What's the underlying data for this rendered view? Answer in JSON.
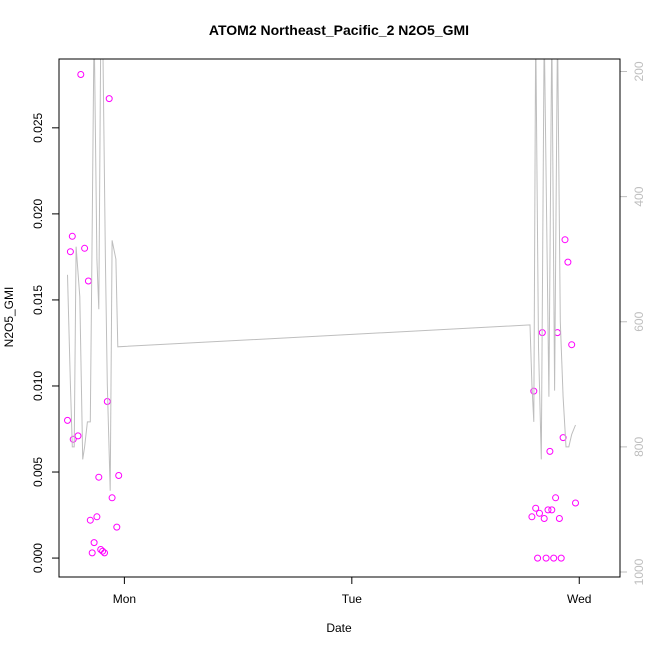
{
  "chart_data": {
    "type": "scatter",
    "title": "ATOM2 Northeast_Pacific_2 N2O5_GMI",
    "xlabel": "Date",
    "ylabel": "N2O5_GMI",
    "x_unit": "hours from Mon 00:00",
    "xlim": [
      -6.9,
      52.3
    ],
    "x_ticks": [
      {
        "value": 0,
        "label": "Mon"
      },
      {
        "value": 24,
        "label": "Tue"
      },
      {
        "value": 48,
        "label": "Wed"
      }
    ],
    "ylim": [
      -0.0011,
      0.029
    ],
    "y_ticks": [
      0.0,
      0.005,
      0.01,
      0.015,
      0.02,
      0.025
    ],
    "y_tick_labels": [
      "0.000",
      "0.005",
      "0.010",
      "0.015",
      "0.020",
      "0.025"
    ],
    "y2": {
      "reversed": true,
      "ylim": [
        1008,
        180
      ],
      "ticks": [
        200,
        400,
        600,
        800,
        1000
      ],
      "tick_labels": [
        "200",
        "400",
        "600",
        "800",
        "1000"
      ],
      "color": "#bebebe"
    },
    "grid": false,
    "series": [
      {
        "kind": "points",
        "color": "#ff00ff",
        "points": [
          {
            "x": -6.0,
            "y": 0.008
          },
          {
            "x": -5.7,
            "y": 0.0178
          },
          {
            "x": -5.5,
            "y": 0.0187
          },
          {
            "x": -5.4,
            "y": 0.0069
          },
          {
            "x": -4.9,
            "y": 0.0071
          },
          {
            "x": -4.6,
            "y": 0.0281
          },
          {
            "x": -4.2,
            "y": 0.018
          },
          {
            "x": -3.8,
            "y": 0.0161
          },
          {
            "x": -3.6,
            "y": 0.0022
          },
          {
            "x": -3.4,
            "y": 0.0003
          },
          {
            "x": -3.2,
            "y": 0.0009
          },
          {
            "x": -2.9,
            "y": 0.0024
          },
          {
            "x": -2.7,
            "y": 0.0047
          },
          {
            "x": -2.5,
            "y": 0.0005
          },
          {
            "x": -2.3,
            "y": 0.0004
          },
          {
            "x": -2.1,
            "y": 0.0003
          },
          {
            "x": -1.8,
            "y": 0.0091
          },
          {
            "x": -1.6,
            "y": 0.0267
          },
          {
            "x": -1.3,
            "y": 0.0035
          },
          {
            "x": -0.8,
            "y": 0.0018
          },
          {
            "x": -0.6,
            "y": 0.0048
          },
          {
            "x": 43.0,
            "y": 0.0024
          },
          {
            "x": 43.2,
            "y": 0.0097
          },
          {
            "x": 43.4,
            "y": 0.0029
          },
          {
            "x": 43.6,
            "y": 0.0
          },
          {
            "x": 43.8,
            "y": 0.0026
          },
          {
            "x": 44.1,
            "y": 0.0131
          },
          {
            "x": 44.3,
            "y": 0.0023
          },
          {
            "x": 44.5,
            "y": 0.0
          },
          {
            "x": 44.7,
            "y": 0.0028
          },
          {
            "x": 44.9,
            "y": 0.0062
          },
          {
            "x": 45.1,
            "y": 0.0028
          },
          {
            "x": 45.3,
            "y": 0.0
          },
          {
            "x": 45.5,
            "y": 0.0035
          },
          {
            "x": 45.7,
            "y": 0.0131
          },
          {
            "x": 45.9,
            "y": 0.0023
          },
          {
            "x": 46.1,
            "y": 0.0
          },
          {
            "x": 46.3,
            "y": 0.007
          },
          {
            "x": 46.5,
            "y": 0.0185
          },
          {
            "x": 46.8,
            "y": 0.0172
          },
          {
            "x": 47.2,
            "y": 0.0124
          },
          {
            "x": 47.6,
            "y": 0.0032
          }
        ]
      },
      {
        "kind": "line",
        "axis": "y2",
        "color": "#bebebe",
        "points": [
          {
            "x": -6.0,
            "y": 525
          },
          {
            "x": -5.7,
            "y": 700
          },
          {
            "x": -5.5,
            "y": 800
          },
          {
            "x": -5.3,
            "y": 800
          },
          {
            "x": -5.1,
            "y": 480
          },
          {
            "x": -4.7,
            "y": 560
          },
          {
            "x": -4.4,
            "y": 820
          },
          {
            "x": -4.2,
            "y": 800
          },
          {
            "x": -3.9,
            "y": 760
          },
          {
            "x": -3.6,
            "y": 760
          },
          {
            "x": -3.4,
            "y": 450
          },
          {
            "x": -3.2,
            "y": 120
          },
          {
            "x": -2.9,
            "y": 500
          },
          {
            "x": -2.7,
            "y": 580
          },
          {
            "x": -2.5,
            "y": 150
          },
          {
            "x": -2.3,
            "y": 120
          },
          {
            "x": -2.0,
            "y": 500
          },
          {
            "x": -1.8,
            "y": 700
          },
          {
            "x": -1.5,
            "y": 870
          },
          {
            "x": -1.3,
            "y": 470
          },
          {
            "x": -0.9,
            "y": 500
          },
          {
            "x": -0.7,
            "y": 640
          },
          {
            "x": 42.8,
            "y": 605
          },
          {
            "x": 43.0,
            "y": 700
          },
          {
            "x": 43.2,
            "y": 760
          },
          {
            "x": 43.4,
            "y": 130
          },
          {
            "x": 43.7,
            "y": 640
          },
          {
            "x": 44.0,
            "y": 820
          },
          {
            "x": 44.3,
            "y": 130
          },
          {
            "x": 44.6,
            "y": 480
          },
          {
            "x": 44.8,
            "y": 720
          },
          {
            "x": 45.1,
            "y": 130
          },
          {
            "x": 45.4,
            "y": 710
          },
          {
            "x": 45.7,
            "y": 130
          },
          {
            "x": 46.0,
            "y": 600
          },
          {
            "x": 46.3,
            "y": 720
          },
          {
            "x": 46.6,
            "y": 800
          },
          {
            "x": 46.9,
            "y": 800
          },
          {
            "x": 47.2,
            "y": 780
          },
          {
            "x": 47.6,
            "y": 765
          }
        ]
      }
    ]
  }
}
